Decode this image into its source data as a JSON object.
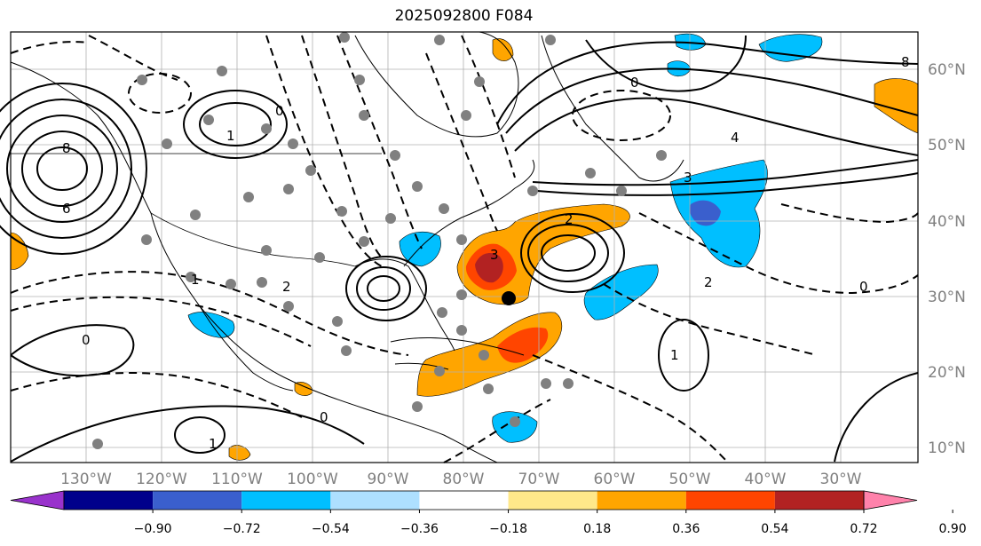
{
  "title": "2025092800 F084",
  "lon_labels": [
    "130°W",
    "120°W",
    "110°W",
    "100°W",
    "90°W",
    "80°W",
    "70°W",
    "60°W",
    "50°W",
    "40°W",
    "30°W"
  ],
  "lat_labels": [
    "60°N",
    "50°N",
    "40°N",
    "30°N",
    "20°N",
    "10°N"
  ],
  "colorbar": {
    "tick_labels": [
      "−0.90",
      "−0.72",
      "−0.54",
      "−0.36",
      "−0.18",
      "0.18",
      "0.36",
      "0.54",
      "0.72",
      "0.90"
    ],
    "colors": [
      "#9932cc",
      "#00008b",
      "#3a5fcd",
      "#00bfff",
      "#aee0ff",
      "#ffffff",
      "#ffe88a",
      "#ffa500",
      "#ff4500",
      "#b22222",
      "#ff82ab"
    ]
  },
  "contour_labels": {
    "c1": "6",
    "c2": "8",
    "c3": "1",
    "c4": "0",
    "c5": "4",
    "c6": "3",
    "c7": "2",
    "c8": "1",
    "c9": "0",
    "c10": "2",
    "c11": "1",
    "c12": "0",
    "c13": "1",
    "c14": "8",
    "c15": "0",
    "c16": "3",
    "c17": "2",
    "c18": "0"
  },
  "colors": {
    "frame": "#000000",
    "grid": "#b0b0b0",
    "tick_text": "#808080"
  }
}
